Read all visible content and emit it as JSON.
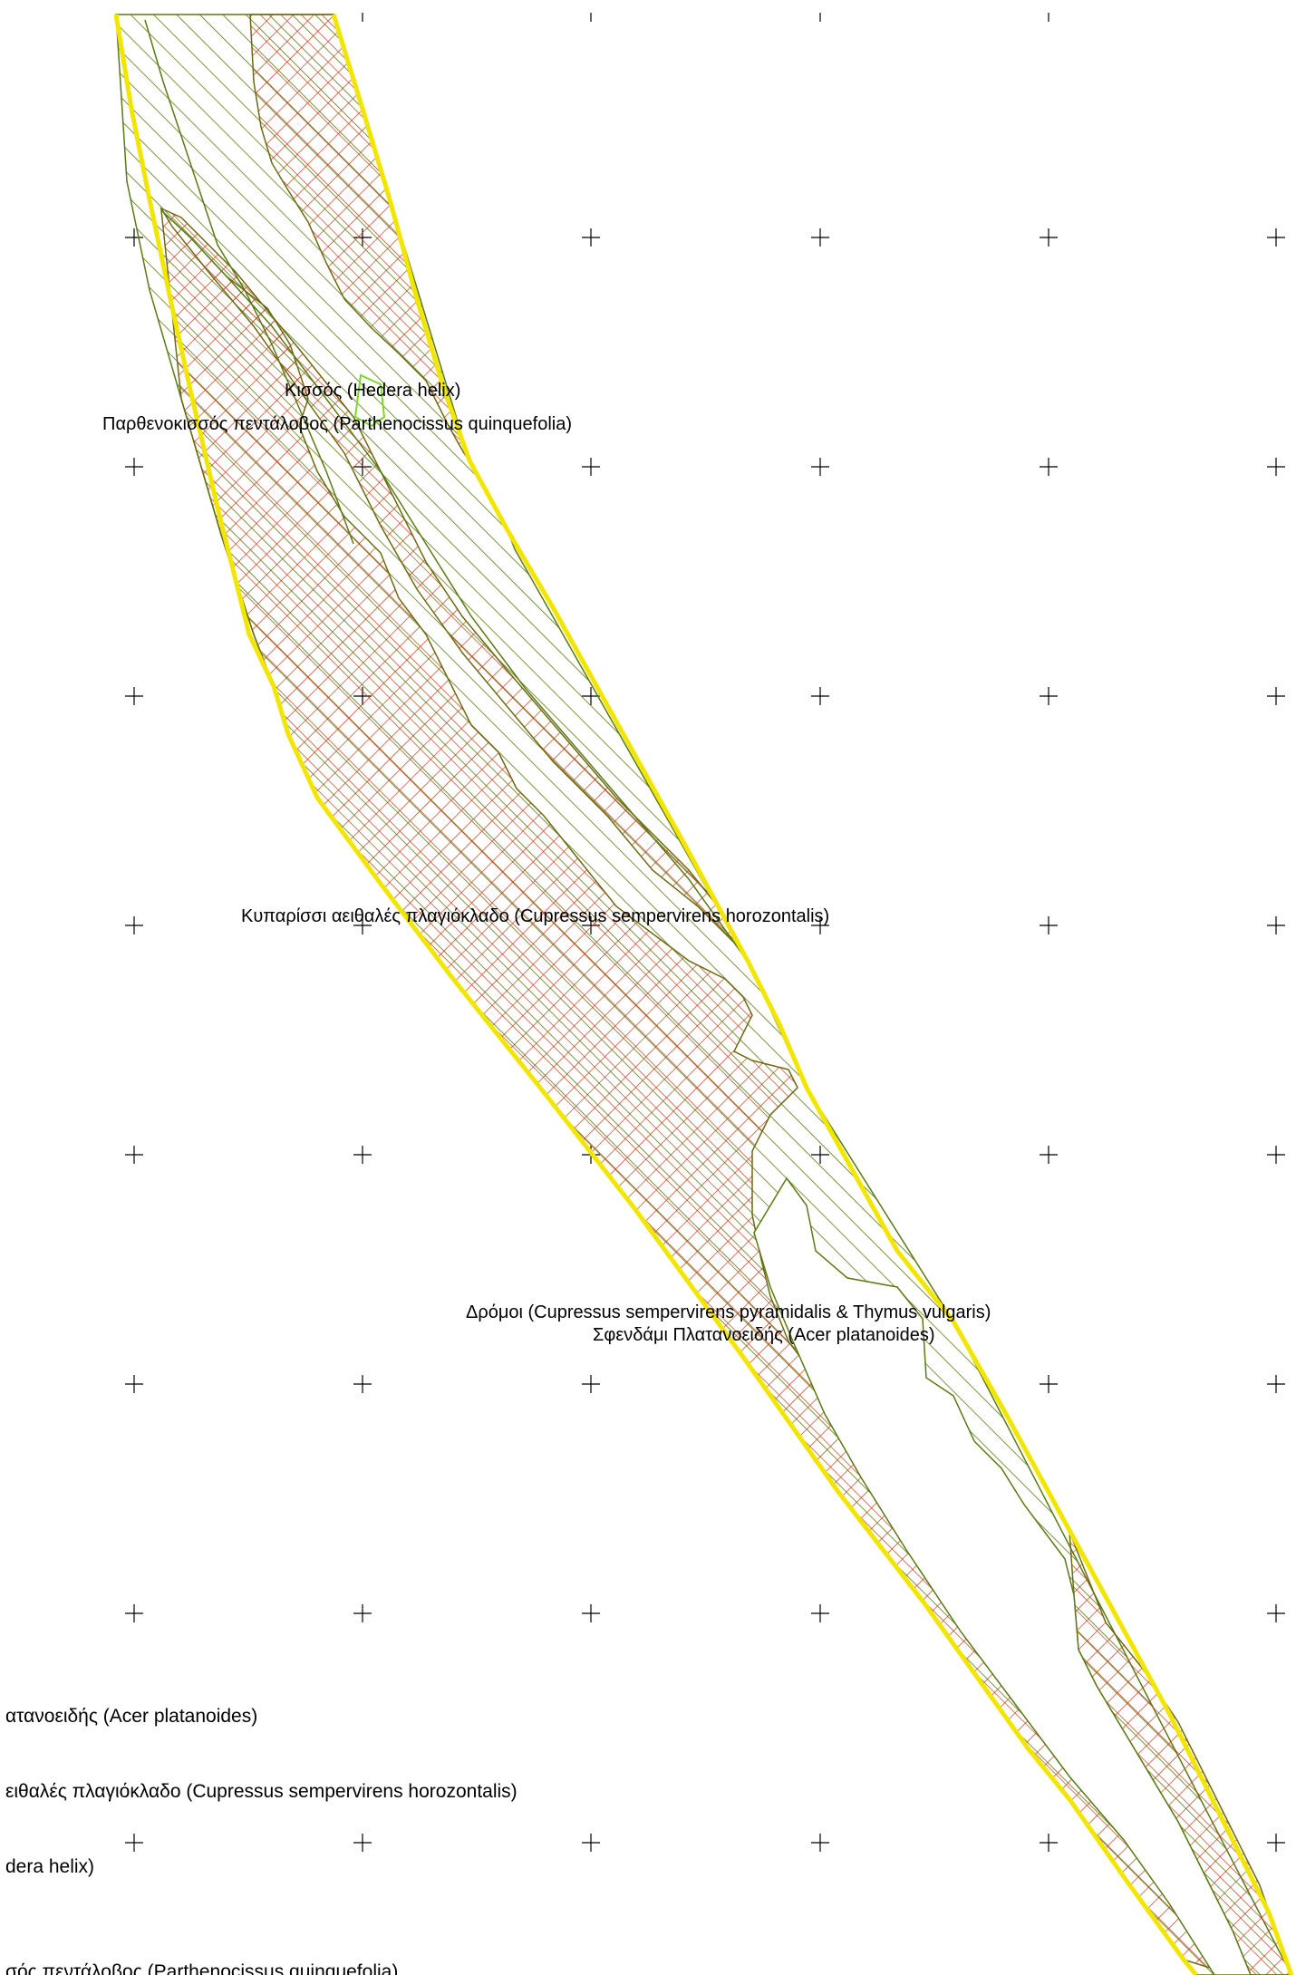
{
  "map": {
    "labels": {
      "kissos": "Κισσός (Hedera helix)",
      "parthenokissos": "Παρθενοκισσός πεντάλοβος (Parthenocissus quinquefolia)",
      "kyparissi": "Κυπαρίσσι αειθαλές πλαγιόκλαδο (Cupressus sempervirens horozontalis)",
      "dromoi": "Δρόμοι (Cupressus sempervirens pyramidalis & Thymus vulgaris)",
      "sfendami": "Σφενδάμι Πλατανοειδής  (Acer platanoides)"
    },
    "colors": {
      "boundary": "#f2e600",
      "green_hatch": "#5a7a14",
      "red_hatch": "#c0401a",
      "grid_marker": "#000000",
      "bright_green": "#7cd820"
    }
  },
  "legend": {
    "items": [
      "ατανοειδής  (Acer platanoides)",
      "ειθαλές πλαγιόκλαδο (Cupressus sempervirens horozontalis)",
      "dera helix)",
      "σός πεντάλοβος (Parthenocissus quinquefolia)"
    ]
  }
}
